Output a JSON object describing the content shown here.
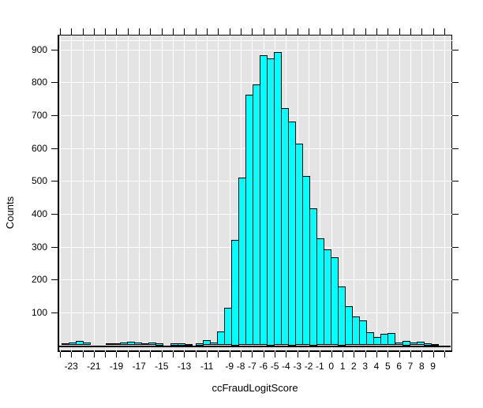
{
  "chart_data": {
    "type": "bar",
    "subtype": "histogram",
    "title": "",
    "xlabel": "ccFraudLogitScore",
    "ylabel": "Counts",
    "plot_background": "#e4e4e4",
    "grid_color": "#ffffff",
    "axis_color": "#000000",
    "bar_color": "#00ffff",
    "bar_border_color": "#000000",
    "x_range": [
      -24.2,
      10.7
    ],
    "y_range": [
      -20,
      944
    ],
    "x_ticks": {
      "from": -24,
      "to": 10,
      "step": 1
    },
    "x_tick_labels": [
      -23,
      -21,
      -19,
      -17,
      -15,
      -13,
      -11,
      -9,
      -8,
      -7,
      -6,
      -5,
      -4,
      -3,
      -2,
      -1,
      0,
      1,
      2,
      3,
      4,
      5,
      6,
      7,
      8,
      9
    ],
    "y_ticks": [
      100,
      200,
      300,
      400,
      500,
      600,
      700,
      800,
      900
    ],
    "y_gridlines": [
      100,
      200,
      300,
      400,
      500,
      600,
      700,
      800,
      900,
      928
    ],
    "legend": null,
    "bins": {
      "bin_width": 0.63,
      "left_outliers": [
        [
          -23.85,
          4
        ],
        [
          -23.22,
          5
        ],
        [
          -22.59,
          10
        ],
        [
          -21.96,
          7
        ],
        [
          -19.95,
          4
        ],
        [
          -19.32,
          4
        ],
        [
          -18.69,
          5
        ],
        [
          -18.06,
          8
        ],
        [
          -17.43,
          5
        ],
        [
          -16.8,
          4
        ],
        [
          -16.17,
          5
        ],
        [
          -15.54,
          3
        ],
        [
          -14.2,
          3
        ],
        [
          -13.57,
          3
        ],
        [
          -12.94,
          2
        ]
      ],
      "main": {
        "start": -12.0,
        "counts": [
          3,
          13,
          5,
          40,
          112,
          318,
          508,
          760,
          790,
          880,
          870,
          890,
          718,
          678,
          611,
          512,
          414,
          322,
          290,
          265,
          177,
          116,
          86,
          74,
          38,
          22,
          32,
          34,
          5,
          12,
          5,
          8,
          3,
          2
        ]
      }
    }
  }
}
